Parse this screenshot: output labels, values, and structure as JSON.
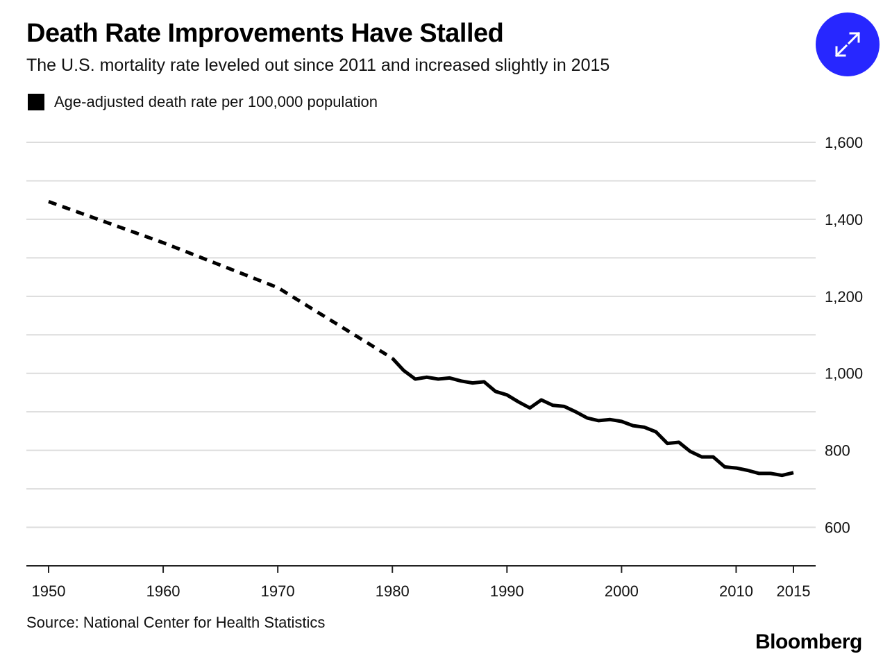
{
  "header": {
    "title": "Death Rate Improvements Have Stalled",
    "subtitle": "The U.S. mortality rate leveled out since 2011 and increased slightly in 2015"
  },
  "legend": {
    "label": "Age-adjusted death rate per 100,000 population",
    "color": "#000000"
  },
  "expand_button": {
    "icon": "expand-arrows-icon",
    "color": "#2727ff"
  },
  "source": "Source: National Center for Health Statistics",
  "logo": "Bloomberg",
  "chart_data": {
    "type": "line",
    "title": "Death Rate Improvements Have Stalled",
    "subtitle": "The U.S. mortality rate leveled out since 2011 and increased slightly in 2015",
    "xlabel": "",
    "ylabel": "",
    "xlim": [
      1950,
      2015
    ],
    "ylim": [
      500,
      1600
    ],
    "y_ticks": [
      600,
      800,
      1000,
      1200,
      1400,
      1600
    ],
    "y_tick_labels": [
      "600",
      "800",
      "1,000",
      "1,200",
      "1,400",
      "1,600"
    ],
    "x_ticks": [
      1950,
      1960,
      1970,
      1980,
      1990,
      2000,
      2010,
      2015
    ],
    "x_tick_labels": [
      "1950",
      "1960",
      "1970",
      "1980",
      "1990",
      "2000",
      "2010",
      "2015"
    ],
    "y_axis_position": "right",
    "grid": true,
    "legend_position": "top-left",
    "series": [
      {
        "name": "Age-adjusted death rate per 100,000 population",
        "style": "dashed",
        "color": "#000000",
        "x": [
          1950,
          1960,
          1970,
          1980
        ],
        "y": [
          1446.0,
          1339.2,
          1222.6,
          1039.1
        ]
      },
      {
        "name": "Age-adjusted death rate per 100,000 population",
        "style": "solid",
        "color": "#000000",
        "x": [
          1980,
          1981,
          1982,
          1983,
          1984,
          1985,
          1986,
          1987,
          1988,
          1989,
          1990,
          1991,
          1992,
          1993,
          1994,
          1995,
          1996,
          1997,
          1998,
          1999,
          2000,
          2001,
          2002,
          2003,
          2004,
          2005,
          2006,
          2007,
          2008,
          2009,
          2010,
          2011,
          2012,
          2013,
          2014,
          2015
        ],
        "y": [
          1039.1,
          1007.1,
          985.0,
          990.0,
          985.0,
          988.0,
          980.0,
          975.0,
          978.0,
          953.0,
          944.0,
          926.0,
          910.0,
          931.0,
          917.0,
          914.0,
          900.0,
          884.0,
          877.0,
          880.0,
          875.0,
          864.0,
          860.0,
          848.0,
          818.0,
          821.0,
          797.0,
          783.0,
          783.0,
          757.0,
          754.0,
          748.0,
          740.0,
          740.0,
          735.0,
          742.0
        ]
      }
    ]
  }
}
